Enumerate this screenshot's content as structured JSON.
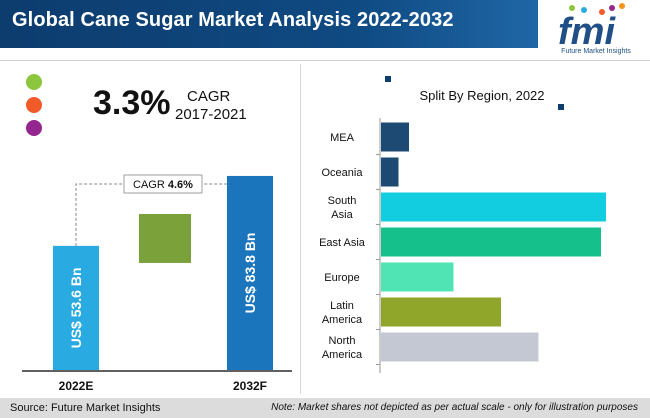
{
  "header": {
    "title": "Global Cane Sugar Market Analysis 2022-2032",
    "logo_text": "Future Market Insights",
    "logo_letters": "fmi"
  },
  "cagr": {
    "value": "3.3%",
    "label": "CAGR",
    "period": "2017-2021"
  },
  "colors": {
    "header": "#0f4a82",
    "dot_green": "#8cc63f",
    "dot_orange": "#f15a29",
    "dot_purple": "#93278f",
    "bar_2022": "#29abe2",
    "bar_2032": "#1b75bc",
    "increment": "#7ba13a"
  },
  "chart_data": [
    {
      "type": "bar",
      "title": "",
      "categories": [
        "2022E",
        "2032F"
      ],
      "values": [
        53.6,
        83.8
      ],
      "value_labels": [
        "US$ 53.6 Bn",
        "US$ 83.8 Bn"
      ],
      "cagr_prefix": "CAGR",
      "cagr_value": "4.6%",
      "ylim": [
        0,
        95
      ]
    },
    {
      "type": "bar",
      "orientation": "horizontal",
      "title": "Split By Region, 2022",
      "categories": [
        "MEA",
        "Oceania",
        "South Asia",
        "East Asia",
        "Europe",
        "Latin America",
        "North America"
      ],
      "category_lines": [
        [
          "MEA"
        ],
        [
          "Oceania"
        ],
        [
          "South",
          "Asia"
        ],
        [
          "East Asia"
        ],
        [
          "Europe"
        ],
        [
          "Latin",
          "America"
        ],
        [
          "North",
          "America"
        ]
      ],
      "values": [
        5.6,
        3.5,
        45,
        44,
        14.5,
        24,
        31.5
      ],
      "colors": [
        "#1d4a73",
        "#1d4a73",
        "#12ccdf",
        "#16c08a",
        "#50e3b4",
        "#8fa62a",
        "#c3c8d3"
      ],
      "xlim": [
        0,
        46
      ]
    }
  ],
  "footer": {
    "source": "Source: Future Market Insights",
    "note": "Note: Market shares not depicted as per actual scale - only for illustration purposes"
  }
}
